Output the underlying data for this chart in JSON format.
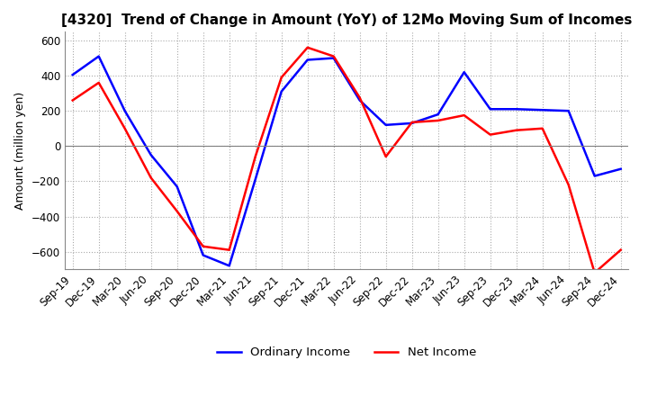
{
  "title": "[4320]  Trend of Change in Amount (YoY) of 12Mo Moving Sum of Incomes",
  "ylabel": "Amount (million yen)",
  "ylim": [
    -700,
    650
  ],
  "yticks": [
    -600,
    -400,
    -200,
    0,
    200,
    400,
    600
  ],
  "x_labels": [
    "Sep-19",
    "Dec-19",
    "Mar-20",
    "Jun-20",
    "Sep-20",
    "Dec-20",
    "Mar-21",
    "Jun-21",
    "Sep-21",
    "Dec-21",
    "Mar-22",
    "Jun-22",
    "Sep-22",
    "Dec-22",
    "Mar-23",
    "Jun-23",
    "Sep-23",
    "Dec-23",
    "Mar-24",
    "Jun-24",
    "Sep-24",
    "Dec-24"
  ],
  "ordinary_income": [
    405,
    510,
    200,
    -50,
    -230,
    -620,
    -680,
    -190,
    310,
    490,
    500,
    260,
    120,
    130,
    180,
    420,
    210,
    210,
    205,
    200,
    -170,
    -130
  ],
  "net_income": [
    260,
    360,
    100,
    -180,
    -370,
    -570,
    -590,
    -60,
    390,
    560,
    510,
    275,
    -60,
    135,
    145,
    175,
    65,
    90,
    100,
    -220,
    -720,
    -590
  ],
  "ordinary_color": "#0000ff",
  "net_color": "#ff0000",
  "background_color": "#ffffff",
  "grid_color": "#aaaaaa",
  "title_fontsize": 11,
  "label_fontsize": 9,
  "tick_fontsize": 8.5,
  "legend_fontsize": 9.5
}
